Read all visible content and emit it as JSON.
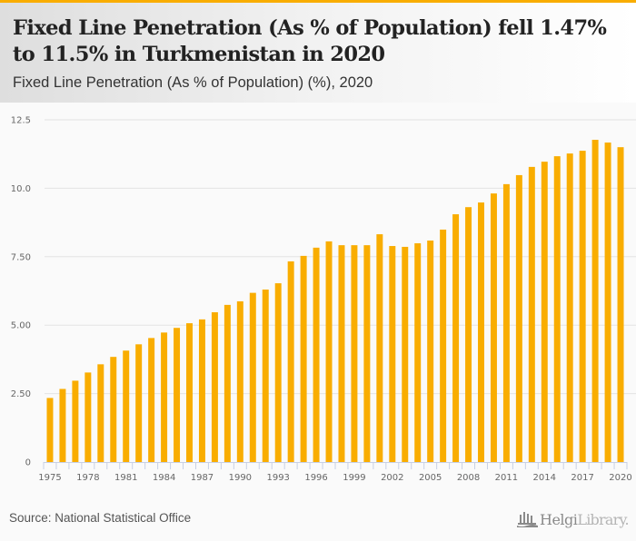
{
  "header": {
    "title": "Fixed Line Penetration (As % of Population) fell 1.47% to 11.5% in Turkmenistan in 2020",
    "subtitle": "Fixed Line Penetration (As % of Population) (%), 2020"
  },
  "footer": {
    "source": "Source: National Statistical Office",
    "logo_main": "Helgi",
    "logo_secondary": "Library."
  },
  "colors": {
    "bar": "#f9ad00",
    "accent": "#f9ad00",
    "grid": "#e3e3e3",
    "axis": "#c7d0e6"
  },
  "chart_data": {
    "type": "bar",
    "title": "Fixed Line Penetration (As % of Population) fell 1.47% to 11.5% in Turkmenistan in 2020",
    "subtitle": "Fixed Line Penetration (As % of Population) (%), 2020",
    "xlabel": "",
    "ylabel": "",
    "ylim": [
      0,
      12.5
    ],
    "yticks": [
      0,
      2.5,
      5,
      7.5,
      10,
      12.5
    ],
    "ytick_labels": [
      "0",
      "2.50",
      "5.00",
      "7.50",
      "10.0",
      "12.5"
    ],
    "grid": true,
    "legend": "none",
    "categories": [
      "1975",
      "1976",
      "1977",
      "1978",
      "1979",
      "1980",
      "1981",
      "1982",
      "1983",
      "1984",
      "1985",
      "1986",
      "1987",
      "1988",
      "1989",
      "1990",
      "1991",
      "1992",
      "1993",
      "1994",
      "1995",
      "1996",
      "1997",
      "1998",
      "1999",
      "2000",
      "2001",
      "2002",
      "2003",
      "2004",
      "2005",
      "2006",
      "2007",
      "2008",
      "2009",
      "2010",
      "2011",
      "2012",
      "2013",
      "2014",
      "2015",
      "2016",
      "2017",
      "2018",
      "2019",
      "2020"
    ],
    "xtick_labels": [
      "1975",
      "1978",
      "1981",
      "1984",
      "1987",
      "1990",
      "1993",
      "1996",
      "1999",
      "2002",
      "2005",
      "2008",
      "2011",
      "2014",
      "2017",
      "2020"
    ],
    "values": [
      2.34,
      2.67,
      2.97,
      3.27,
      3.57,
      3.84,
      4.07,
      4.3,
      4.53,
      4.73,
      4.9,
      5.07,
      5.21,
      5.47,
      5.74,
      5.87,
      6.18,
      6.3,
      6.53,
      7.33,
      7.53,
      7.83,
      8.06,
      7.92,
      7.92,
      7.92,
      8.32,
      7.89,
      7.86,
      7.99,
      8.09,
      8.49,
      9.05,
      9.31,
      9.48,
      9.81,
      10.15,
      10.48,
      10.78,
      10.97,
      11.17,
      11.27,
      11.37,
      11.77,
      11.67,
      11.5
    ]
  }
}
